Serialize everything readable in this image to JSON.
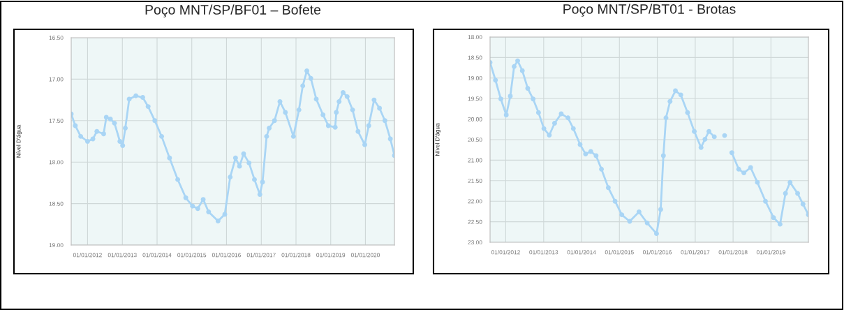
{
  "chart_data": [
    {
      "type": "line",
      "title": "Poço MNT/SP/BF01 – Bofete",
      "ylabel": "Nível D'água",
      "grid": true,
      "marker": "circle",
      "line_style": "solid",
      "legend": false,
      "xlim": [
        "2011-07-13",
        "2020-11-01"
      ],
      "xticks": [
        {
          "value": "2012-01-01",
          "label": "01/01/2012"
        },
        {
          "value": "2013-01-01",
          "label": "01/01/2013"
        },
        {
          "value": "2014-01-01",
          "label": "01/01/2014"
        },
        {
          "value": "2015-01-01",
          "label": "01/01/2015"
        },
        {
          "value": "2016-01-01",
          "label": "01/01/2016"
        },
        {
          "value": "2017-01-01",
          "label": "01/01/2017"
        },
        {
          "value": "2018-01-01",
          "label": "01/01/2018"
        },
        {
          "value": "2019-01-01",
          "label": "01/01/2019"
        },
        {
          "value": "2020-01-01",
          "label": "01/01/2020"
        }
      ],
      "ylim": [
        19.0,
        16.5
      ],
      "yticks": [
        {
          "value": 16.5,
          "label": "16.50"
        },
        {
          "value": 17.0,
          "label": "17.00"
        },
        {
          "value": 17.5,
          "label": "17.50"
        },
        {
          "value": 18.0,
          "label": "18.00"
        },
        {
          "value": 18.5,
          "label": "18.50"
        },
        {
          "value": 19.0,
          "label": "19.00"
        }
      ],
      "series": [
        {
          "color": "#a9d5f5",
          "x": [
            "2011-07-13",
            "2011-08-25",
            "2011-10-21",
            "2012-01-01",
            "2012-02-26",
            "2012-04-08",
            "2012-06-18",
            "2012-07-16",
            "2012-08-28",
            "2012-10-10",
            "2012-12-06",
            "2013-01-04",
            "2013-02-01",
            "2013-03-14",
            "2013-05-23",
            "2013-08-03",
            "2013-09-29",
            "2013-12-08",
            "2014-02-18",
            "2014-05-12",
            "2014-08-06",
            "2014-10-30",
            "2015-01-09",
            "2015-03-05",
            "2015-05-01",
            "2015-06-27",
            "2015-10-04",
            "2015-12-14",
            "2016-02-09",
            "2016-04-05",
            "2016-05-17",
            "2016-06-29",
            "2016-08-25",
            "2016-10-21",
            "2016-12-17",
            "2017-01-14",
            "2017-02-26",
            "2017-03-25",
            "2017-05-20",
            "2017-07-16",
            "2017-09-11",
            "2017-12-05",
            "2018-02-01",
            "2018-03-13",
            "2018-04-25",
            "2018-06-06",
            "2018-08-02",
            "2018-10-12",
            "2018-12-07",
            "2019-02-17",
            "2019-03-01",
            "2019-03-30",
            "2019-05-11",
            "2019-06-23",
            "2019-08-19",
            "2019-10-15",
            "2019-12-25",
            "2020-02-05",
            "2020-04-01",
            "2020-05-28",
            "2020-07-24",
            "2020-09-19",
            "2020-11-01"
          ],
          "values": [
            17.42,
            17.56,
            17.69,
            17.75,
            17.72,
            17.63,
            17.66,
            17.46,
            17.48,
            17.53,
            17.75,
            17.8,
            17.59,
            17.24,
            17.2,
            17.22,
            17.33,
            17.5,
            17.69,
            17.95,
            18.21,
            18.43,
            18.53,
            18.56,
            18.45,
            18.6,
            18.71,
            18.63,
            18.18,
            17.95,
            18.05,
            17.9,
            18.01,
            18.21,
            18.39,
            18.24,
            17.69,
            17.59,
            17.5,
            17.27,
            17.4,
            17.69,
            17.37,
            17.08,
            16.9,
            16.99,
            17.24,
            17.43,
            17.56,
            17.58,
            17.4,
            17.27,
            17.16,
            17.21,
            17.37,
            17.63,
            17.79,
            17.56,
            17.25,
            17.35,
            17.5,
            17.72,
            17.92
          ]
        }
      ]
    },
    {
      "type": "line",
      "title": "Poço MNT/SP/BT01 - Brotas",
      "ylabel": "Nível D'água",
      "grid": true,
      "marker": "circle",
      "line_style": "solid",
      "legend": false,
      "xlim": [
        "2011-08-03",
        "2019-12-28"
      ],
      "xticks": [
        {
          "value": "2012-01-01",
          "label": "01/01/2012"
        },
        {
          "value": "2013-01-01",
          "label": "01/01/2013"
        },
        {
          "value": "2014-01-01",
          "label": "01/01/2014"
        },
        {
          "value": "2015-01-01",
          "label": "01/01/2015"
        },
        {
          "value": "2016-01-01",
          "label": "01/01/2016"
        },
        {
          "value": "2017-01-01",
          "label": "01/01/2017"
        },
        {
          "value": "2018-01-01",
          "label": "01/01/2018"
        },
        {
          "value": "2019-01-01",
          "label": "01/01/2019"
        }
      ],
      "ylim": [
        23.0,
        18.0
      ],
      "yticks": [
        {
          "value": 18.0,
          "label": "18.00"
        },
        {
          "value": 18.5,
          "label": "18.50"
        },
        {
          "value": 19.0,
          "label": "19.00"
        },
        {
          "value": 19.5,
          "label": "19.50"
        },
        {
          "value": 20.0,
          "label": "20.00"
        },
        {
          "value": 20.5,
          "label": "20.50"
        },
        {
          "value": 21.0,
          "label": "21.00"
        },
        {
          "value": 21.5,
          "label": "21.50"
        },
        {
          "value": 22.0,
          "label": "22.00"
        },
        {
          "value": 22.5,
          "label": "22.50"
        },
        {
          "value": 23.0,
          "label": "23.00"
        }
      ],
      "series": [
        {
          "color": "#a9d5f5",
          "x": [
            "2011-08-03",
            "2011-09-24",
            "2011-11-15",
            "2012-01-06",
            "2012-02-14",
            "2012-03-22",
            "2012-04-25",
            "2012-06-09",
            "2012-07-31",
            "2012-09-21",
            "2012-11-12",
            "2013-01-03",
            "2013-02-24",
            "2013-04-16",
            "2013-06-19",
            "2013-08-23",
            "2013-10-14",
            "2013-12-18",
            "2014-02-09",
            "2014-03-31",
            "2014-05-21",
            "2014-07-12",
            "2014-09-16",
            "2014-11-20",
            "2015-01-24",
            "2015-04-10",
            "2015-07-09",
            "2015-09-26",
            "2015-12-25",
            "2016-02-03",
            "2016-02-29",
            "2016-03-25",
            "2016-05-03",
            "2016-06-24",
            "2016-08-15",
            "2016-10-19",
            "2016-12-23",
            "2017-02-26",
            "2017-04-05",
            "2017-05-13",
            "2017-07-04",
            "2017-08-20",
            "2017-10-11",
            "2017-11-20",
            "2017-12-20",
            "2018-02-24",
            "2018-04-15",
            "2018-06-19",
            "2018-08-23",
            "2018-11-09",
            "2019-01-26",
            "2019-03-30",
            "2019-05-21",
            "2019-07-04",
            "2019-09-15",
            "2019-11-06",
            "2019-12-28"
          ],
          "values": [
            18.62,
            19.05,
            19.51,
            19.9,
            19.44,
            18.72,
            18.58,
            18.82,
            19.25,
            19.51,
            19.84,
            20.23,
            20.39,
            20.1,
            19.87,
            19.97,
            20.23,
            20.62,
            20.85,
            20.79,
            20.89,
            21.22,
            21.67,
            22.0,
            22.33,
            22.49,
            22.26,
            22.53,
            22.79,
            22.2,
            20.89,
            19.97,
            19.57,
            19.31,
            19.41,
            19.84,
            20.3,
            20.69,
            20.49,
            20.3,
            20.43,
            null,
            20.4,
            null,
            20.82,
            21.22,
            21.31,
            21.18,
            21.54,
            22.0,
            22.4,
            22.56,
            21.81,
            21.54,
            21.81,
            22.07,
            22.33
          ]
        }
      ]
    }
  ]
}
